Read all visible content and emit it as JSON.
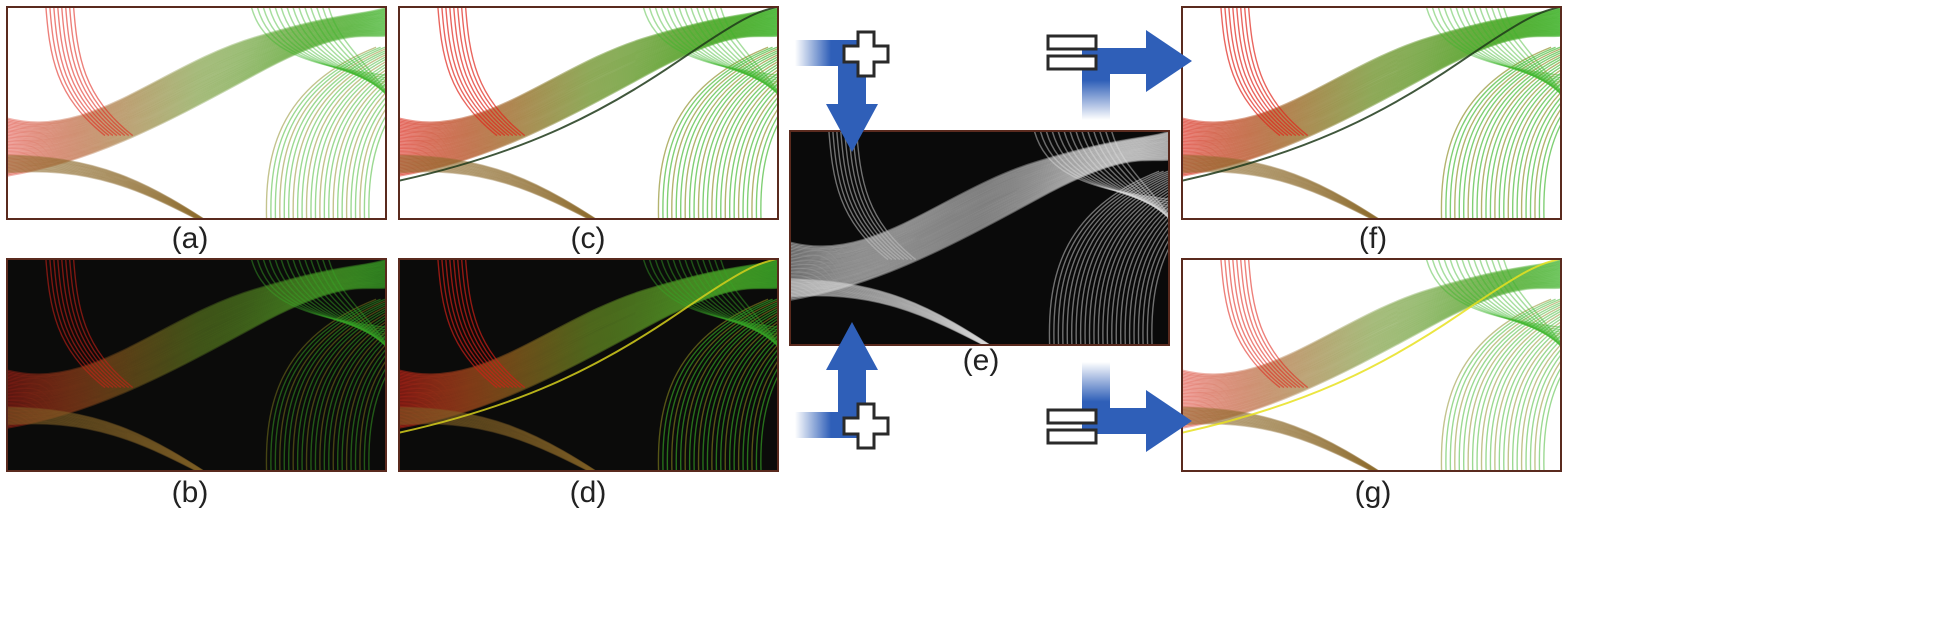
{
  "captions": {
    "a": "(a)",
    "b": "(b)",
    "c": "(c)",
    "d": "(d)",
    "e": "(e)",
    "f": "(f)",
    "g": "(g)"
  },
  "panels": [
    {
      "id": "a",
      "bg": "#ffffff",
      "mode": "light"
    },
    {
      "id": "b",
      "bg": "#0d0c0b",
      "mode": "dark"
    },
    {
      "id": "c",
      "bg": "#ffffff",
      "mode": "light-enhanced"
    },
    {
      "id": "d",
      "bg": "#0d0c0b",
      "mode": "dark-enhanced"
    },
    {
      "id": "e",
      "bg": "#0a0a0a",
      "mode": "gray"
    },
    {
      "id": "f",
      "bg": "#ffffff",
      "mode": "light-enhanced"
    },
    {
      "id": "g",
      "bg": "#ffffff",
      "mode": "light-yellow"
    }
  ],
  "colors": {
    "arrow": "#2f5fb8",
    "frame": "#5a2a1e",
    "red": "#e0241a",
    "green": "#3cb52a",
    "olive": "#8a8a20"
  }
}
